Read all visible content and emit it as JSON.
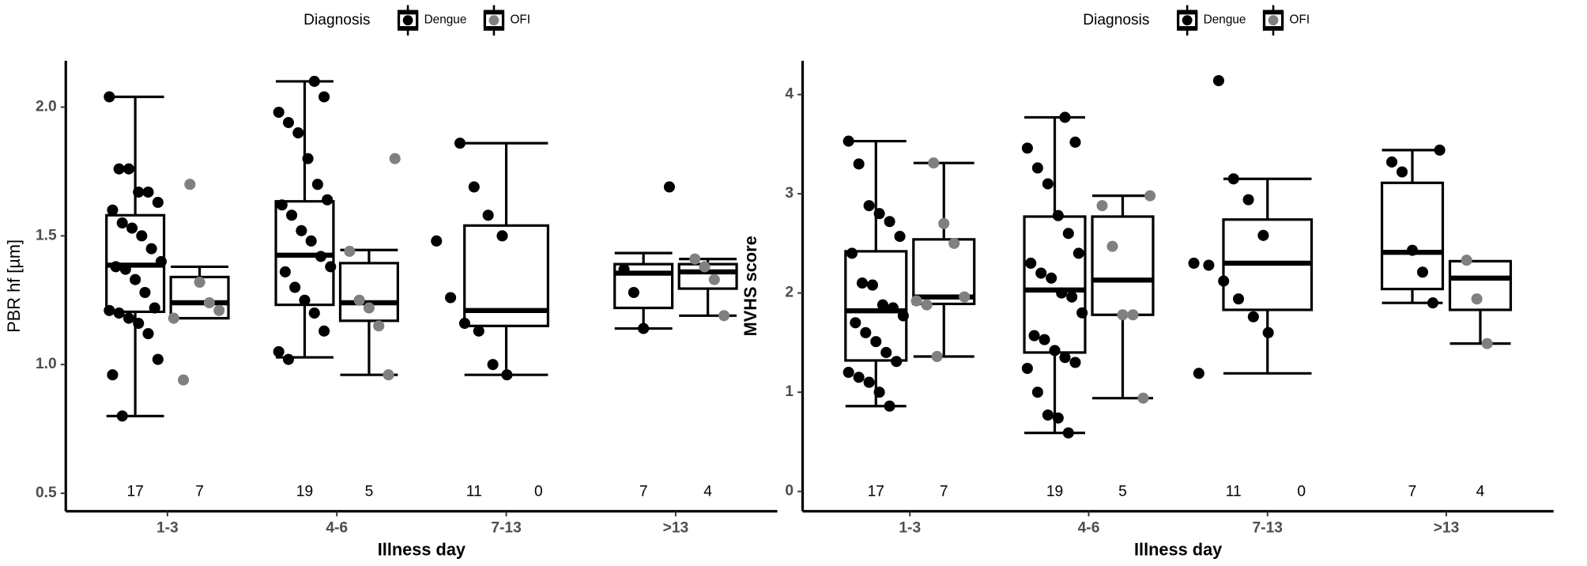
{
  "chart_data": [
    {
      "type": "box",
      "ylabel": "PBR hf [µm]",
      "xlabel": "Illness day",
      "legend_title": "Diagnosis",
      "categories": [
        "1-3",
        "4-6",
        "7-13",
        ">13"
      ],
      "ylim": [
        0.43,
        2.18
      ],
      "yticks": [
        0.5,
        {
          "value": 1,
          "label": "1.0"
        },
        1.5,
        {
          "value": 2,
          "label": "2.0"
        }
      ],
      "series": [
        {
          "name": "Dengue",
          "color": "#000000",
          "counts": [
            17,
            19,
            11,
            7
          ],
          "boxes": [
            {
              "min": 0.8,
              "q1": 1.205,
              "median": 1.386,
              "q3": 1.58,
              "max": 2.04
            },
            {
              "min": 1.028,
              "q1": 1.232,
              "median": 1.425,
              "q3": 1.634,
              "max": 2.1
            },
            {
              "min": 0.96,
              "q1": 1.15,
              "median": 1.21,
              "q3": 1.54,
              "max": 1.86
            },
            {
              "min": 1.14,
              "q1": 1.22,
              "median": 1.355,
              "q3": 1.39,
              "max": 1.433
            }
          ],
          "points": [
            [
              2.04,
              1.76,
              1.76,
              1.67,
              1.67,
              1.63,
              1.6,
              1.55,
              1.53,
              1.5,
              1.45,
              1.4,
              1.38,
              1.37,
              1.33,
              1.28,
              1.22,
              1.21,
              1.2,
              1.18,
              1.16,
              1.12,
              1.02,
              0.96,
              0.8
            ],
            [
              2.1,
              2.04,
              1.98,
              1.94,
              1.9,
              1.8,
              1.7,
              1.64,
              1.62,
              1.58,
              1.52,
              1.48,
              1.42,
              1.38,
              1.36,
              1.3,
              1.25,
              1.2,
              1.13,
              1.05,
              1.02
            ],
            [
              1.86,
              1.69,
              1.58,
              1.5,
              1.48,
              1.26,
              1.16,
              1.13,
              1.0,
              0.96
            ],
            [
              1.69,
              1.37,
              1.28,
              1.14
            ]
          ]
        },
        {
          "name": "OFI",
          "color": "#808080",
          "counts": [
            7,
            5,
            0,
            4
          ],
          "boxes": [
            {
              "min": 1.18,
              "q1": 1.18,
              "median": 1.24,
              "q3": 1.34,
              "max": 1.38
            },
            {
              "min": 0.96,
              "q1": 1.17,
              "median": 1.24,
              "q3": 1.394,
              "max": 1.445
            },
            null,
            {
              "min": 1.19,
              "q1": 1.295,
              "median": 1.36,
              "q3": 1.39,
              "max": 1.41
            }
          ],
          "points": [
            [
              1.7,
              1.32,
              1.24,
              1.21,
              1.18,
              0.94
            ],
            [
              1.8,
              1.44,
              1.25,
              1.22,
              1.15,
              0.96
            ],
            [],
            [
              1.41,
              1.38,
              1.33,
              1.19
            ]
          ]
        }
      ]
    },
    {
      "type": "box",
      "ylabel": "MVHS score",
      "xlabel": "Illness day",
      "legend_title": "Diagnosis",
      "categories": [
        "1-3",
        "4-6",
        "7-13",
        ">13"
      ],
      "ylim": [
        -0.2,
        4.34
      ],
      "yticks": [
        0,
        1,
        2,
        3,
        4
      ],
      "series": [
        {
          "name": "Dengue",
          "color": "#000000",
          "counts": [
            17,
            19,
            11,
            7
          ],
          "boxes": [
            {
              "min": 0.86,
              "q1": 1.32,
              "median": 1.82,
              "q3": 2.42,
              "max": 3.53
            },
            {
              "min": 0.59,
              "q1": 1.4,
              "median": 2.03,
              "q3": 2.77,
              "max": 3.77
            },
            {
              "min": 1.19,
              "q1": 1.83,
              "median": 2.3,
              "q3": 2.74,
              "max": 3.15
            },
            {
              "min": 1.9,
              "q1": 2.04,
              "median": 2.41,
              "q3": 3.11,
              "max": 3.44
            }
          ],
          "points": [
            [
              3.53,
              3.3,
              2.88,
              2.8,
              2.72,
              2.57,
              2.4,
              2.1,
              2.08,
              1.88,
              1.85,
              1.77,
              1.7,
              1.6,
              1.51,
              1.4,
              1.31,
              1.2,
              1.15,
              1.1,
              1.0,
              0.86
            ],
            [
              3.77,
              3.52,
              3.46,
              3.26,
              3.1,
              2.78,
              2.6,
              2.4,
              2.3,
              2.2,
              2.15,
              2.0,
              1.96,
              1.8,
              1.57,
              1.53,
              1.42,
              1.35,
              1.3,
              1.24,
              1.0,
              0.77,
              0.74,
              0.59
            ],
            [
              4.14,
              3.15,
              2.94,
              2.58,
              2.3,
              2.28,
              2.12,
              1.94,
              1.76,
              1.6,
              1.19
            ],
            [
              3.44,
              3.32,
              3.22,
              2.43,
              2.21,
              1.9
            ]
          ]
        },
        {
          "name": "OFI",
          "color": "#808080",
          "counts": [
            7,
            5,
            0,
            4
          ],
          "boxes": [
            {
              "min": 1.36,
              "q1": 1.89,
              "median": 1.96,
              "q3": 2.54,
              "max": 3.31
            },
            {
              "min": 0.94,
              "q1": 1.78,
              "median": 2.13,
              "q3": 2.77,
              "max": 2.98
            },
            null,
            {
              "min": 1.49,
              "q1": 1.83,
              "median": 2.15,
              "q3": 2.32,
              "max": 2.32
            }
          ],
          "points": [
            [
              3.31,
              2.7,
              2.5,
              1.96,
              1.92,
              1.88,
              1.36
            ],
            [
              2.98,
              2.88,
              2.47,
              1.78,
              1.78,
              0.94
            ],
            [],
            [
              2.33,
              1.94,
              1.49
            ]
          ]
        }
      ]
    }
  ]
}
